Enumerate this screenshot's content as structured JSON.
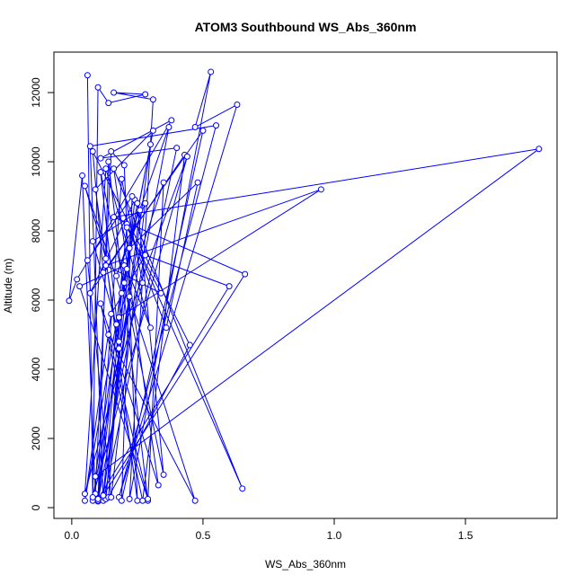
{
  "chart_data": {
    "type": "line",
    "title": "ATOM3 Southbound WS_Abs_360nm",
    "x_label": "WS_Abs_360nm",
    "y_label": "Altitude (m)",
    "x": [
      0.06,
      0.08,
      0.1,
      0.14,
      0.28,
      0.16,
      0.31,
      0.22,
      0.53,
      0.47,
      0.63,
      0.18,
      0.55,
      0.07,
      0.12,
      0.4,
      0.11,
      0.38,
      0.02,
      -0.01,
      0.04,
      0.09,
      0.15,
      0.2,
      0.25,
      0.13,
      0.05,
      0.19,
      0.3,
      0.12,
      0.26,
      0.08,
      0.17,
      0.35,
      0.29,
      0.14,
      0.1,
      0.22,
      0.48,
      0.36,
      0.21,
      0.65,
      0.16,
      0.33,
      0.11,
      0.27,
      0.43,
      0.07,
      0.24,
      0.13,
      0.18,
      0.09,
      0.31,
      0.2,
      0.14,
      0.45,
      0.08,
      0.12,
      0.5,
      0.19,
      0.23,
      0.06,
      0.15,
      0.28,
      0.17,
      0.37,
      0.1,
      0.21,
      0.34,
      0.13,
      0.95,
      0.18,
      0.09,
      1.78,
      0.16,
      0.66,
      0.12,
      0.2,
      0.03,
      0.29,
      0.14,
      0.47,
      0.22,
      0.08,
      0.44,
      0.18,
      0.11,
      0.35,
      0.25,
      0.05,
      0.15,
      0.28,
      0.6,
      0.1,
      0.19,
      0.27,
      0.05,
      0.13,
      0.3,
      0.21
    ],
    "series": [
      {
        "color": "#0000ff",
        "values": [
          12500,
          200,
          12150,
          11700,
          11950,
          12000,
          11800,
          250,
          12600,
          11000,
          11650,
          300,
          11050,
          10450,
          200,
          10400,
          10100,
          11200,
          6600,
          5980,
          9600,
          400,
          10300,
          9900,
          200,
          7200,
          9300,
          6200,
          10500,
          300,
          8600,
          7700,
          5300,
          9400,
          200,
          10000,
          180,
          7500,
          9400,
          5200,
          8200,
          550,
          9800,
          650,
          5900,
          200,
          10200,
          6200,
          8900,
          250,
          4600,
          9200,
          10900,
          6500,
          300,
          4700,
          10300,
          6800,
          10900,
          200,
          9000,
          7150,
          300,
          8800,
          6700,
          11000,
          200,
          8100,
          6200,
          7000,
          9200,
          5500,
          900,
          10370,
          8400,
          6750,
          350,
          7000,
          6400,
          250,
          5000,
          200,
          6100,
          300,
          10150,
          4800,
          9700,
          950,
          8800,
          200,
          5600,
          7300,
          6400,
          250,
          9500,
          6500,
          400,
          9800,
          5200,
          6900
        ]
      }
    ],
    "xlim": [
      -0.068,
      1.849
    ],
    "ylim": [
      -312,
      13170
    ],
    "xticks": [
      {
        "value": 0,
        "label": "0.0"
      },
      {
        "value": 0.5,
        "label": "0.5"
      },
      {
        "value": 1,
        "label": "1.0"
      },
      {
        "value": 1.5,
        "label": "1.5"
      }
    ],
    "yticks": [
      0,
      2000,
      4000,
      6000,
      8000,
      10000,
      12000
    ]
  }
}
